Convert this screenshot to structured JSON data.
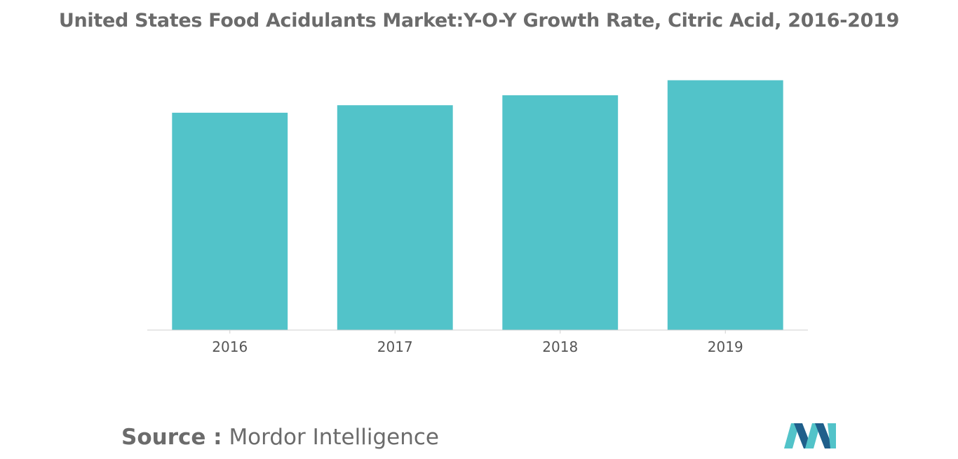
{
  "chart_data": {
    "type": "bar",
    "title": "United States Food Acidulants Market:Y-O-Y Growth Rate, Citric Acid, 2016-2019",
    "xlabel": "",
    "ylabel": "",
    "categories": [
      "2016",
      "2017",
      "2018",
      "2019"
    ],
    "values": [
      0.87,
      0.9,
      0.94,
      1.0
    ],
    "ylim": [
      0,
      1.08
    ],
    "grid": false,
    "bar_color": "#52c3c9"
  },
  "source": {
    "label": "Source :",
    "text": "Mordor Intelligence"
  },
  "logo": {
    "icon": "mordor-intelligence-logo-icon",
    "colors": [
      "#52c3c9",
      "#1f5f8b"
    ]
  }
}
